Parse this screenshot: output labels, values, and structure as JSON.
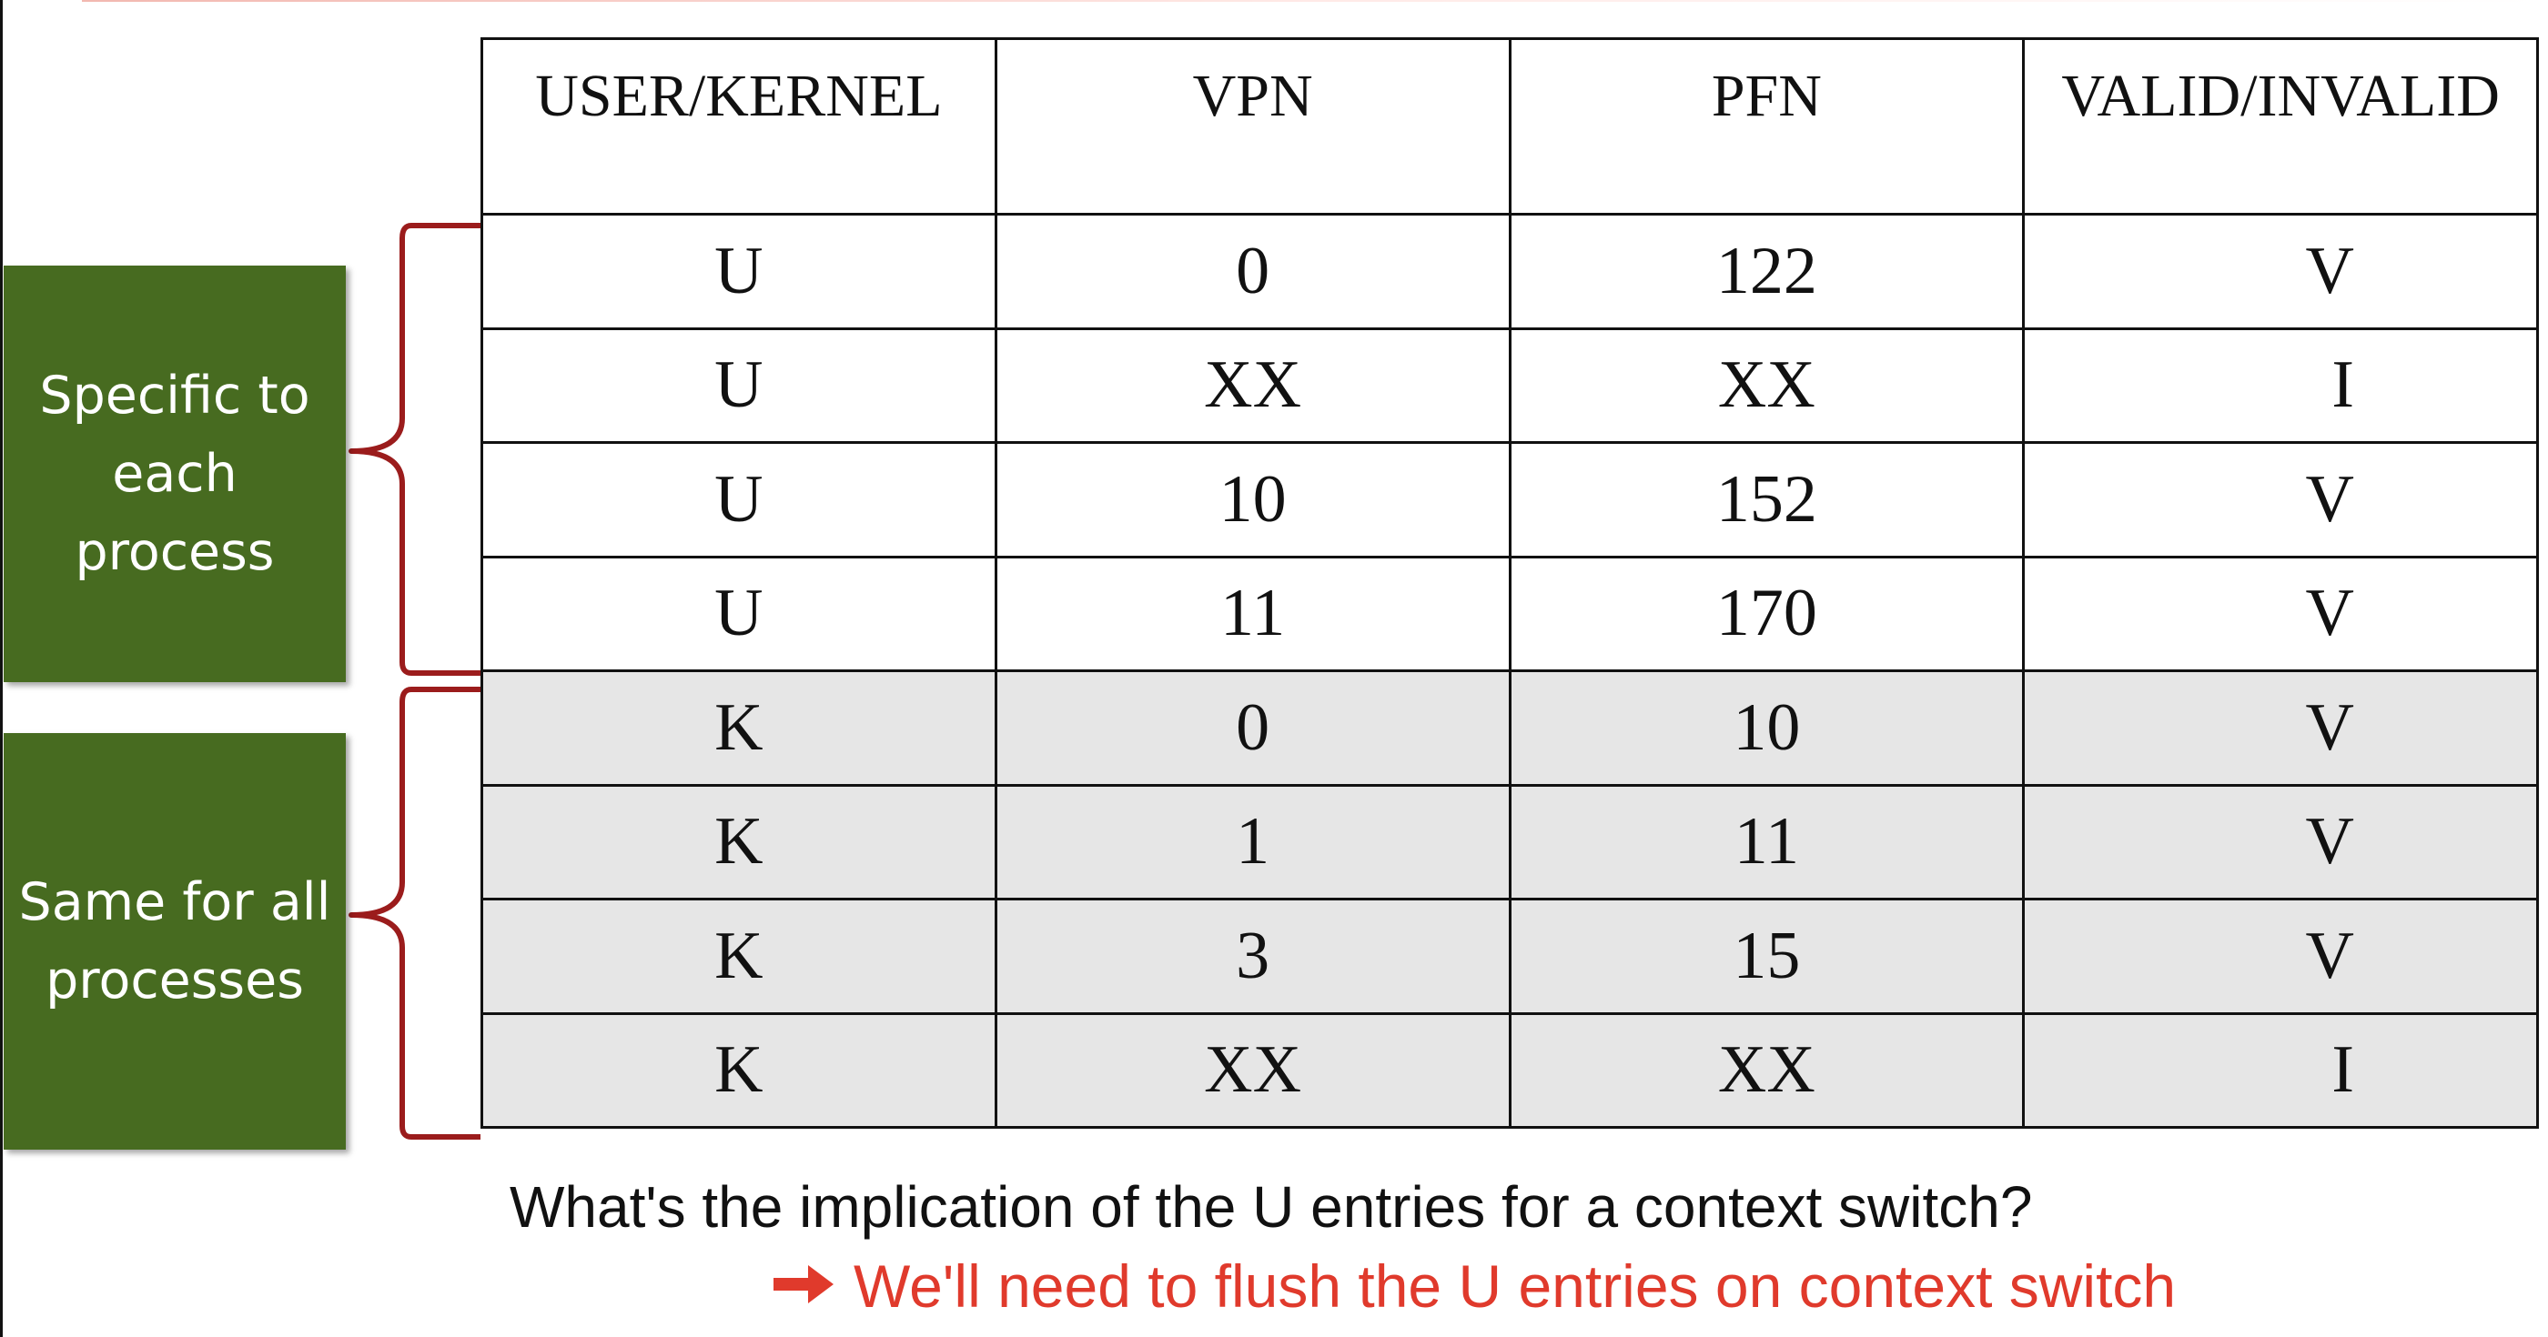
{
  "table": {
    "headers": [
      "USER/KERNEL",
      "VPN",
      "PFN",
      "VALID/INVALID"
    ],
    "rows": [
      [
        "U",
        "0",
        "122",
        "V"
      ],
      [
        "U",
        "XX",
        "XX",
        "I"
      ],
      [
        "U",
        "10",
        "152",
        "V"
      ],
      [
        "U",
        "11",
        "170",
        "V"
      ],
      [
        "K",
        "0",
        "10",
        "V"
      ],
      [
        "K",
        "1",
        "11",
        "V"
      ],
      [
        "K",
        "3",
        "15",
        "V"
      ],
      [
        "K",
        "XX",
        "XX",
        "I"
      ]
    ]
  },
  "groups": {
    "user": {
      "label": "Specific to each process",
      "color": "#476b20"
    },
    "kernel": {
      "label": "Same for all processes",
      "color": "#476b20"
    }
  },
  "question": "What's the implication of the U entries for a context switch?",
  "answer": "We'll need to flush the U entries on context switch",
  "colors": {
    "bracket": "#9b1c1c",
    "answer": "#e03a2c",
    "kernel_row_bg": "#e6e6e6"
  },
  "icons": {
    "answer_arrow": "right-arrow-icon"
  }
}
